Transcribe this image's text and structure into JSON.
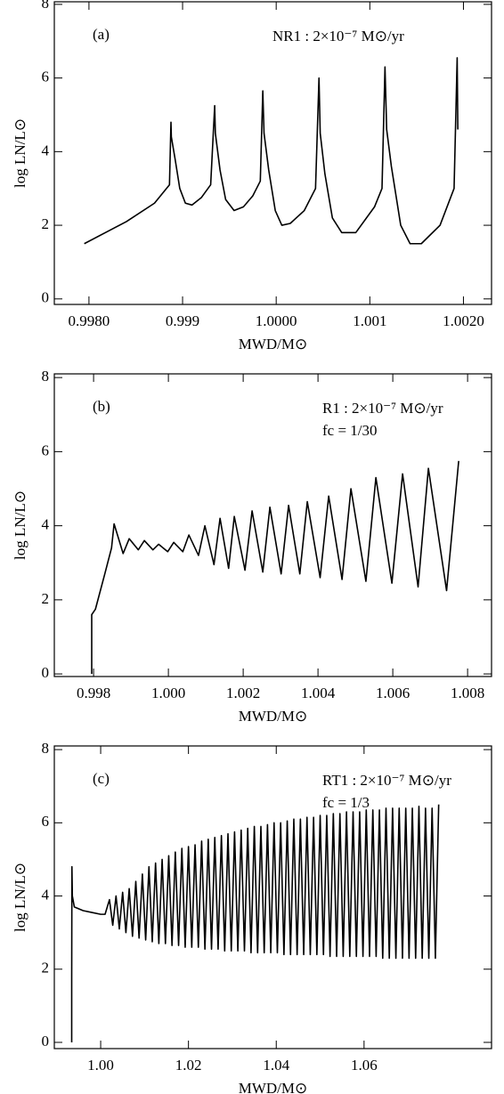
{
  "chart_data": [
    {
      "type": "line",
      "panel_label": "(a)",
      "annotations": [
        "NR1 : 2×10⁻⁷ M⊙/yr"
      ],
      "x_label": "MWD/M⊙",
      "y_label": "log LN/L⊙",
      "color": "#000000",
      "xlim": [
        0.99763,
        1.0023
      ],
      "ylim": [
        -0.15,
        8.07
      ],
      "xticks": [
        {
          "value": 0.998,
          "label": "0.9980"
        },
        0.999,
        {
          "value": 1.0,
          "label": "1.0000"
        },
        1.001,
        {
          "value": 1.002,
          "label": "1.0020"
        }
      ],
      "yticks": [
        0,
        2,
        4,
        6,
        8
      ],
      "x": [
        0.99795,
        0.9984,
        0.9987,
        0.99886,
        0.998876,
        0.99888,
        0.99892,
        0.99897,
        0.99903,
        0.9991,
        0.9992,
        0.9993,
        0.999343,
        0.99935,
        0.9994,
        0.99946,
        0.99955,
        0.99965,
        0.99975,
        0.99983,
        0.999857,
        0.99987,
        0.99992,
        0.99999,
        1.00006,
        1.00015,
        1.0003,
        1.00042,
        1.000457,
        1.00047,
        1.00052,
        1.0006,
        1.0007,
        1.00085,
        1.00105,
        1.00113,
        1.001162,
        1.00118,
        1.00123,
        1.00133,
        1.00143,
        1.00155,
        1.00175,
        1.0019,
        1.001933,
        1.00194
      ],
      "values": [
        1.5,
        2.1,
        2.6,
        3.1,
        4.8,
        4.4,
        3.8,
        3.0,
        2.6,
        2.55,
        2.75,
        3.1,
        5.25,
        4.5,
        3.5,
        2.7,
        2.4,
        2.5,
        2.8,
        3.2,
        5.65,
        4.5,
        3.5,
        2.4,
        2.0,
        2.05,
        2.4,
        3.0,
        6.0,
        4.5,
        3.4,
        2.2,
        1.8,
        1.8,
        2.5,
        3.0,
        6.3,
        4.6,
        3.6,
        2.0,
        1.5,
        1.5,
        2.0,
        3.0,
        6.55,
        4.6
      ]
    },
    {
      "type": "line",
      "panel_label": "(b)",
      "annotations": [
        "R1 : 2×10⁻⁷ M⊙/yr",
        "fc = 1/30"
      ],
      "x_label": "MWD/M⊙",
      "y_label": "log LN/L⊙",
      "color": "#000000",
      "xlim": [
        0.99695,
        1.00864
      ],
      "ylim": [
        -0.07,
        8.1
      ],
      "xticks": [
        0.998,
        {
          "value": 1.0,
          "label": "1.000"
        },
        1.002,
        1.004,
        1.006,
        1.008
      ],
      "yticks": [
        0,
        2,
        4,
        6,
        8
      ],
      "x": [
        0.99795,
        0.99795,
        0.99805,
        0.9983,
        0.99848,
        0.998548,
        0.99879,
        0.998952,
        0.999195,
        0.999357,
        0.999586,
        0.999738,
        0.999981,
        1.000143,
        1.000386,
        1.000548,
        1.000805,
        1.000976,
        1.001219,
        1.001381,
        1.00161,
        1.001762,
        1.002048,
        1.002238,
        1.002524,
        1.002714,
        1.003014,
        1.003214,
        1.003514,
        1.003714,
        1.004057,
        1.004286,
        1.004643,
        1.004881,
        1.005281,
        1.005548,
        1.005976,
        1.006262,
        1.006676,
        1.006952,
        1.007438,
        1.007762
      ],
      "values": [
        0,
        1.6,
        1.75,
        2.7,
        3.4,
        4.05,
        3.25,
        3.65,
        3.35,
        3.6,
        3.35,
        3.5,
        3.3,
        3.55,
        3.3,
        3.75,
        3.2,
        4.0,
        2.95,
        4.2,
        2.85,
        4.25,
        2.8,
        4.4,
        2.75,
        4.5,
        2.7,
        4.55,
        2.7,
        4.65,
        2.6,
        4.8,
        2.55,
        5.0,
        2.5,
        5.3,
        2.45,
        5.4,
        2.35,
        5.55,
        2.25,
        5.75
      ]
    },
    {
      "type": "line",
      "panel_label": "(c)",
      "annotations": [
        "RT1 : 2×10⁻⁷ M⊙/yr",
        "fc = 1/3"
      ],
      "x_label": "MWD/M⊙",
      "y_label": "log LN/L⊙",
      "color": "#000000",
      "xlim": [
        0.98944,
        1.08904
      ],
      "ylim": [
        -0.17,
        8.1
      ],
      "xticks": [
        {
          "value": 1.0,
          "label": "1.00"
        },
        1.02,
        1.04,
        1.06
      ],
      "yticks": [
        0,
        2,
        4,
        6,
        8
      ],
      "x": [
        0.9934,
        0.9934,
        0.99345,
        0.99355,
        0.994,
        0.996,
        0.998,
        1.0,
        1.001,
        1.002,
        1.00275,
        1.0035,
        1.00425,
        1.005,
        1.00575,
        1.0065,
        1.00725,
        1.008,
        1.00875,
        1.0095,
        1.01025,
        1.011,
        1.01175,
        1.0125,
        1.01325,
        1.014,
        1.01475,
        1.0155,
        1.01625,
        1.017,
        1.01775,
        1.0185,
        1.01925,
        1.02,
        1.02075,
        1.0215,
        1.02225,
        1.023,
        1.02375,
        1.0245,
        1.02525,
        1.026,
        1.02675,
        1.0275,
        1.02825,
        1.029,
        1.02975,
        1.0305,
        1.03125,
        1.032,
        1.03275,
        1.0335,
        1.03425,
        1.035,
        1.03575,
        1.0365,
        1.03725,
        1.038,
        1.03875,
        1.0395,
        1.04025,
        1.041,
        1.04175,
        1.0425,
        1.04325,
        1.044,
        1.04475,
        1.0455,
        1.04625,
        1.047,
        1.04775,
        1.0485,
        1.04925,
        1.05,
        1.05075,
        1.0515,
        1.05225,
        1.053,
        1.05375,
        1.0545,
        1.05525,
        1.056,
        1.05675,
        1.0575,
        1.05825,
        1.059,
        1.05975,
        1.0605,
        1.06125,
        1.062,
        1.06275,
        1.0635,
        1.06425,
        1.065,
        1.06575,
        1.0665,
        1.06725,
        1.068,
        1.06875,
        1.0695,
        1.07025,
        1.071,
        1.07175,
        1.0725,
        1.07325,
        1.074,
        1.07475,
        1.0755,
        1.07625,
        1.077
      ],
      "values": [
        0,
        1.8,
        4.8,
        4.0,
        3.7,
        3.6,
        3.55,
        3.5,
        3.5,
        3.9,
        3.2,
        4.0,
        3.1,
        4.1,
        3.0,
        4.2,
        2.9,
        4.4,
        2.85,
        4.6,
        2.8,
        4.8,
        2.75,
        4.9,
        2.7,
        5.0,
        2.7,
        5.1,
        2.65,
        5.2,
        2.65,
        5.3,
        2.6,
        5.35,
        2.6,
        5.4,
        2.6,
        5.5,
        2.55,
        5.55,
        2.55,
        5.6,
        2.55,
        5.65,
        2.5,
        5.7,
        2.5,
        5.75,
        2.5,
        5.8,
        2.5,
        5.85,
        2.45,
        5.9,
        2.45,
        5.9,
        2.45,
        5.95,
        2.45,
        6.0,
        2.45,
        6.0,
        2.4,
        6.05,
        2.4,
        6.1,
        2.4,
        6.1,
        2.4,
        6.15,
        2.4,
        6.15,
        2.4,
        6.2,
        2.4,
        6.2,
        2.35,
        6.25,
        2.35,
        6.25,
        2.35,
        6.3,
        2.35,
        6.3,
        2.35,
        6.3,
        2.35,
        6.35,
        2.35,
        6.35,
        2.35,
        6.35,
        2.3,
        6.4,
        2.3,
        6.4,
        2.3,
        6.4,
        2.3,
        6.4,
        2.3,
        6.4,
        2.3,
        6.45,
        2.3,
        6.4,
        2.3,
        6.4,
        2.3,
        6.5
      ]
    }
  ]
}
